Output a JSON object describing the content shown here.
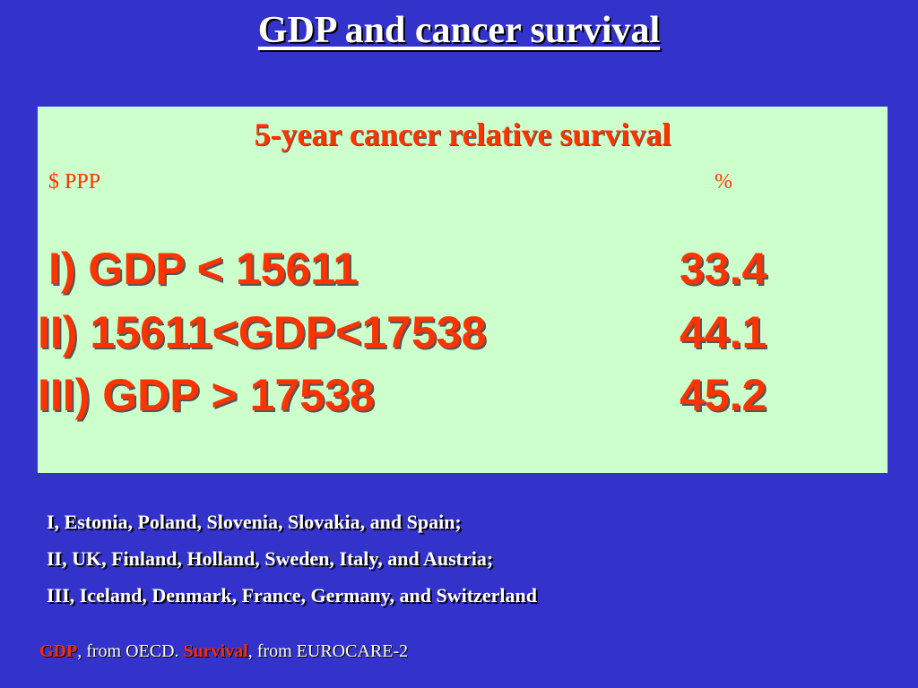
{
  "slide": {
    "title": "GDP and cancer survival"
  },
  "panel": {
    "heading": "5-year cancer relative survival",
    "unit_left": "$ PPP",
    "unit_right": "%",
    "rows": [
      {
        "label": "I) GDP < 15611",
        "value": "33.4"
      },
      {
        "label": "II) 15611<GDP<17538",
        "value": "44.1"
      },
      {
        "label": "III) GDP > 17538",
        "value": "45.2"
      }
    ]
  },
  "notes": [
    "I, Estonia, Poland, Slovenia, Slovakia, and Spain;",
    "II, UK, Finland, Holland, Sweden, Italy, and Austria;",
    "III, Iceland, Denmark, France, Germany, and Switzerland"
  ],
  "source": {
    "gdp_label": "GDP",
    "gdp_source": ", from OECD. ",
    "survival_label": "Survival",
    "survival_source": ", from EUROCARE-2"
  },
  "colors": {
    "background": "#3333cc",
    "panel": "#ccffcc",
    "accent": "#ff3300",
    "text": "#ffffff"
  }
}
